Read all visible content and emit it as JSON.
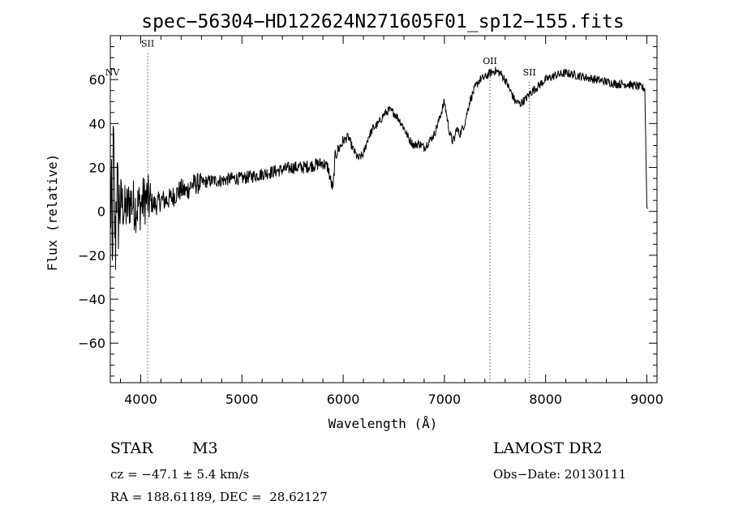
{
  "info": {
    "class": "STAR",
    "subclass": "M3",
    "survey": "LAMOST DR2",
    "cz": "cz = −47.1 ± 5.4 km/s",
    "obs_date": "Obs−Date: 20130111",
    "radec": "RA = 188.61189, DEC =  28.62127"
  },
  "chart_data": {
    "type": "line",
    "title": "spec−56304−HD122624N271605F01_sp12−155.fits",
    "xlabel": "Wavelength (Å)",
    "ylabel": "Flux (relative)",
    "xlim": [
      3700,
      9100
    ],
    "ylim": [
      -78,
      80
    ],
    "xticks": [
      4000,
      5000,
      6000,
      7000,
      8000,
      9000
    ],
    "xtick_labels": [
      "4000",
      "5000",
      "6000",
      "7000",
      "8000",
      "9000"
    ],
    "yticks": [
      -60,
      -40,
      -20,
      0,
      20,
      40,
      60
    ],
    "ytick_labels": [
      "−60",
      "−40",
      "−20",
      "0",
      "20",
      "40",
      "60"
    ],
    "grid": false,
    "lines": [
      {
        "label": "SII",
        "x": 4069,
        "y": 75
      },
      {
        "label": "NV",
        "x": 3720,
        "y": 62
      },
      {
        "label": "OII",
        "x": 7450,
        "y": 67
      },
      {
        "label": "SII",
        "x": 7840,
        "y": 62
      }
    ],
    "series": [
      {
        "x": [
          3700,
          3710,
          3720,
          3730,
          3740,
          3750,
          3760,
          3780,
          3800,
          3850,
          3900,
          3950,
          4000,
          4050,
          4100,
          4150,
          4200,
          4250,
          4300,
          4350,
          4400,
          4450,
          4500,
          4600,
          4700,
          4800,
          4900,
          5000,
          5100,
          5200,
          5300,
          5400,
          5500,
          5600,
          5700,
          5800,
          5850,
          5880,
          5900,
          5920,
          5950,
          6000,
          6050,
          6100,
          6150,
          6200,
          6250,
          6300,
          6350,
          6400,
          6450,
          6500,
          6550,
          6600,
          6650,
          6700,
          6750,
          6800,
          6850,
          6900,
          6950,
          7000,
          7050,
          7080,
          7100,
          7120,
          7150,
          7200,
          7250,
          7300,
          7350,
          7400,
          7450,
          7500,
          7550,
          7600,
          7650,
          7700,
          7750,
          7800,
          7850,
          7900,
          7950,
          8000,
          8100,
          8200,
          8300,
          8400,
          8500,
          8600,
          8700,
          8800,
          8900,
          8980,
          9000,
          9010
        ],
        "y": [
          -5,
          10,
          -30,
          35,
          5,
          -20,
          15,
          0,
          5,
          0,
          5,
          2,
          3,
          6,
          4,
          3,
          5,
          5,
          6,
          8,
          10,
          9,
          12,
          13,
          14,
          14,
          15,
          15,
          16,
          17,
          18,
          19,
          20,
          20,
          21,
          22,
          20,
          13,
          10,
          25,
          28,
          32,
          34,
          28,
          24,
          26,
          34,
          38,
          40,
          44,
          46,
          45,
          42,
          38,
          33,
          30,
          31,
          29,
          32,
          35,
          42,
          50,
          36,
          32,
          33,
          38,
          35,
          40,
          50,
          56,
          60,
          61,
          63,
          64,
          63,
          60,
          55,
          50,
          49,
          51,
          54,
          56,
          58,
          60,
          62,
          63,
          62,
          61,
          60,
          59,
          58,
          58,
          57,
          56,
          2,
          1
        ]
      }
    ]
  }
}
